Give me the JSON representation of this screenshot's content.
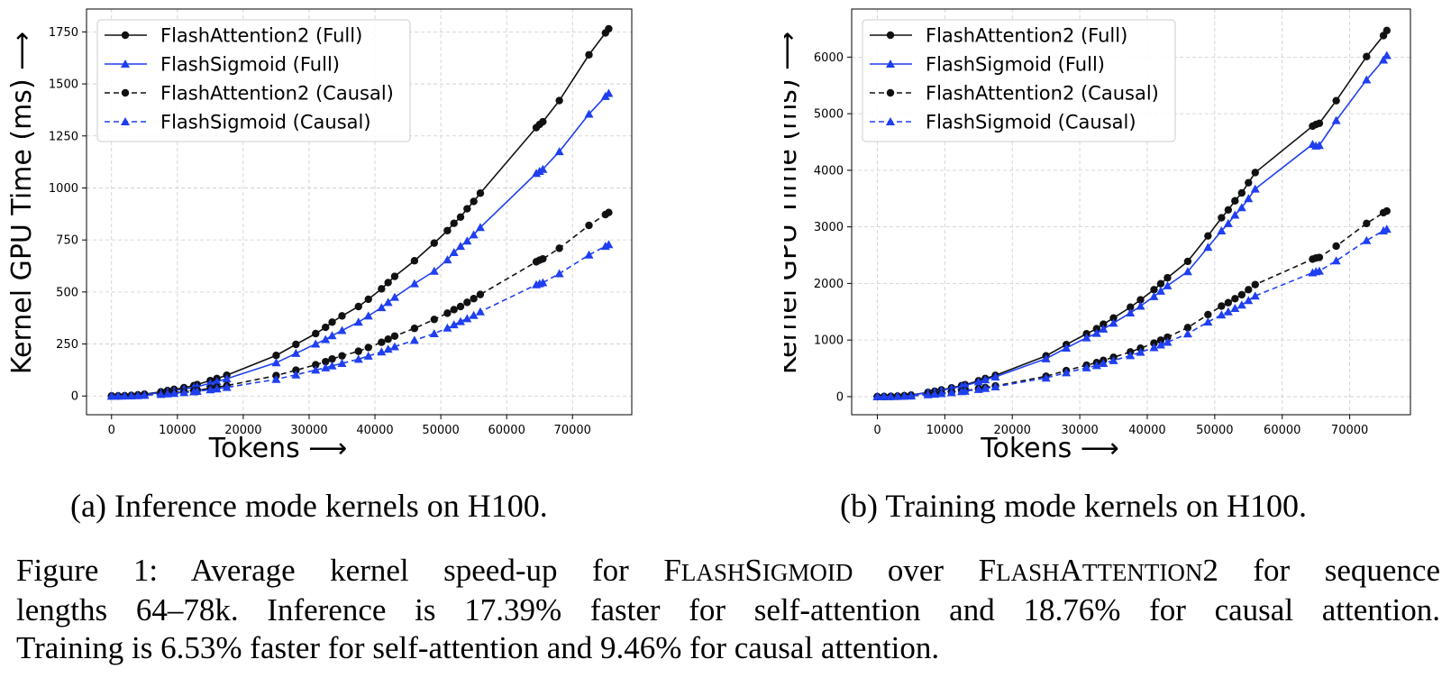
{
  "chart_data": [
    {
      "type": "line",
      "title": "",
      "caption": "(a) Inference mode kernels on H100.",
      "xlabel": "Tokens ⟶",
      "ylabel": "Kernel GPU Time (ms) ⟶",
      "xlim": [
        -3800,
        79000
      ],
      "ylim": [
        -90,
        1860
      ],
      "xticks": [
        0,
        10000,
        20000,
        30000,
        40000,
        50000,
        60000,
        70000
      ],
      "xtick_labels": [
        "0",
        "10000",
        "20000",
        "30000",
        "40000",
        "50000",
        "60000",
        "70000"
      ],
      "yticks": [
        0,
        250,
        500,
        750,
        1000,
        1250,
        1500,
        1750
      ],
      "ytick_labels": [
        "0",
        "250",
        "500",
        "750",
        "1000",
        "1250",
        "1500",
        "1750"
      ],
      "grid": true,
      "legend_position": "top-left",
      "x": [
        0,
        1000,
        2000,
        3000,
        4000,
        5000,
        7500,
        8500,
        9500,
        11000,
        12500,
        13000,
        15000,
        16000,
        17500,
        25000,
        28000,
        31000,
        32500,
        33500,
        35000,
        37500,
        39000,
        41000,
        42000,
        43000,
        46000,
        49000,
        51000,
        52000,
        53000,
        54000,
        55000,
        56000,
        64500,
        65000,
        65500,
        68000,
        72500,
        75000,
        75500
      ],
      "series": [
        {
          "name": "FlashAttention2 (Full)",
          "color": "#111111",
          "dash": "solid",
          "marker": "circle",
          "values": [
            0,
            0.3,
            1.4,
            3,
            5.6,
            8.8,
            20,
            26,
            32,
            40,
            50,
            55,
            74,
            84,
            100,
            195,
            248,
            300,
            330,
            355,
            385,
            430,
            465,
            515,
            545,
            575,
            650,
            735,
            795,
            830,
            860,
            900,
            935,
            975,
            1290,
            1305,
            1318,
            1420,
            1640,
            1745,
            1765
          ]
        },
        {
          "name": "FlashSigmoid (Full)",
          "color": "#1f3ff0",
          "dash": "solid",
          "marker": "triangle",
          "values": [
            0,
            0.25,
            1.1,
            2.5,
            4.6,
            7.2,
            16,
            21,
            26,
            33,
            41,
            45,
            61,
            69,
            83,
            160,
            205,
            250,
            272,
            290,
            315,
            355,
            385,
            425,
            450,
            475,
            540,
            600,
            655,
            690,
            720,
            745,
            775,
            810,
            1070,
            1080,
            1090,
            1175,
            1355,
            1440,
            1455
          ]
        },
        {
          "name": "FlashAttention2 (Causal)",
          "color": "#111111",
          "dash": "dashed",
          "marker": "circle",
          "values": [
            0,
            0.15,
            0.7,
            1.5,
            2.8,
            4.4,
            10,
            13,
            16,
            20,
            25,
            27,
            37,
            42,
            50,
            98,
            124,
            150,
            165,
            178,
            193,
            215,
            233,
            258,
            273,
            288,
            325,
            368,
            398,
            415,
            430,
            450,
            468,
            488,
            645,
            653,
            659,
            710,
            820,
            872,
            882
          ]
        },
        {
          "name": "FlashSigmoid (Causal)",
          "color": "#1f3ff0",
          "dash": "dashed",
          "marker": "triangle",
          "values": [
            0,
            0.12,
            0.55,
            1.25,
            2.3,
            3.6,
            8,
            10.5,
            13,
            16.5,
            20.5,
            22.5,
            30.5,
            34.5,
            41.5,
            80,
            102,
            125,
            136,
            145,
            157,
            177,
            192,
            212,
            225,
            237,
            268,
            300,
            327,
            343,
            358,
            372,
            388,
            405,
            535,
            540,
            545,
            588,
            678,
            720,
            728
          ]
        }
      ]
    },
    {
      "type": "line",
      "title": "",
      "caption": "(b) Training mode kernels on H100.",
      "xlabel": "Tokens ⟶",
      "ylabel": "Kernel GPU Time (ms) ⟶",
      "xlim": [
        -3800,
        79000
      ],
      "ylim": [
        -320,
        6850
      ],
      "xticks": [
        0,
        10000,
        20000,
        30000,
        40000,
        50000,
        60000,
        70000
      ],
      "xtick_labels": [
        "0",
        "10000",
        "20000",
        "30000",
        "40000",
        "50000",
        "60000",
        "70000"
      ],
      "yticks": [
        0,
        1000,
        2000,
        3000,
        4000,
        5000,
        6000
      ],
      "ytick_labels": [
        "0",
        "1000",
        "2000",
        "3000",
        "4000",
        "5000",
        "6000"
      ],
      "grid": true,
      "legend_position": "top-left",
      "x": [
        0,
        1000,
        2000,
        3000,
        4000,
        5000,
        7500,
        8500,
        9500,
        11000,
        12500,
        13000,
        15000,
        16000,
        17500,
        25000,
        28000,
        31000,
        32500,
        33500,
        35000,
        37500,
        39000,
        41000,
        42000,
        43000,
        46000,
        49000,
        51000,
        52000,
        53000,
        54000,
        55000,
        56000,
        64500,
        65000,
        65500,
        68000,
        72500,
        75000,
        75500
      ],
      "series": [
        {
          "name": "FlashAttention2 (Full)",
          "color": "#111111",
          "dash": "solid",
          "marker": "circle",
          "values": [
            0,
            1.1,
            4.5,
            10,
            18,
            28,
            75,
            95,
            118,
            155,
            195,
            210,
            280,
            320,
            375,
            720,
            920,
            1110,
            1200,
            1280,
            1390,
            1580,
            1710,
            1890,
            1995,
            2100,
            2390,
            2840,
            3160,
            3300,
            3460,
            3600,
            3780,
            3960,
            4780,
            4810,
            4830,
            5230,
            6010,
            6380,
            6470
          ]
        },
        {
          "name": "FlashSigmoid (Full)",
          "color": "#1f3ff0",
          "dash": "solid",
          "marker": "triangle",
          "values": [
            0,
            1,
            4.1,
            9.3,
            17,
            26,
            70,
            89,
            110,
            145,
            182,
            196,
            262,
            300,
            350,
            670,
            860,
            1040,
            1120,
            1195,
            1300,
            1480,
            1600,
            1770,
            1865,
            1960,
            2210,
            2640,
            2930,
            3060,
            3210,
            3340,
            3500,
            3670,
            4460,
            4430,
            4440,
            4880,
            5600,
            5950,
            6030
          ]
        },
        {
          "name": "FlashAttention2 (Causal)",
          "color": "#111111",
          "dash": "dashed",
          "marker": "circle",
          "values": [
            0,
            0.55,
            2.2,
            5,
            9,
            14,
            38,
            48,
            59,
            78,
            98,
            105,
            140,
            160,
            188,
            360,
            460,
            555,
            600,
            640,
            695,
            790,
            855,
            945,
            998,
            1050,
            1220,
            1450,
            1600,
            1660,
            1730,
            1800,
            1890,
            1980,
            2430,
            2450,
            2460,
            2660,
            3060,
            3250,
            3280
          ]
        },
        {
          "name": "FlashSigmoid (Causal)",
          "color": "#1f3ff0",
          "dash": "dashed",
          "marker": "triangle",
          "values": [
            0,
            0.5,
            2,
            4.5,
            8.2,
            12.8,
            35,
            44,
            54,
            72,
            90,
            97,
            129,
            147,
            173,
            330,
            422,
            510,
            550,
            588,
            638,
            725,
            785,
            868,
            915,
            963,
            1110,
            1320,
            1445,
            1500,
            1560,
            1620,
            1700,
            1780,
            2190,
            2210,
            2220,
            2400,
            2760,
            2930,
            2960
          ]
        }
      ]
    }
  ],
  "caption": {
    "line1": "Figure 1:  Average kernel speed-up for FlashSigmoid over FlashAttention2 for sequence",
    "line2": "lengths 64–78k.  Inference is 17.39% faster for self-attention and 18.76% for causal attention.",
    "line3": "Training is 6.53% faster for self-attention and 9.46% for causal attention."
  }
}
